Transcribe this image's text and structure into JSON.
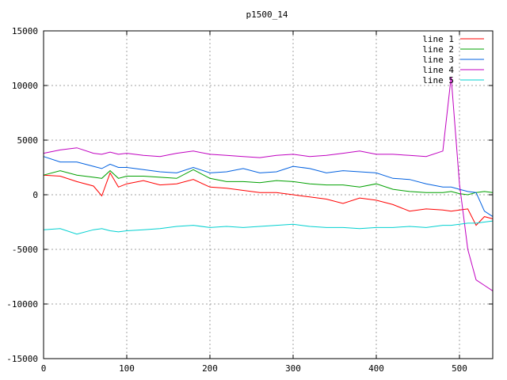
{
  "chart_data": {
    "type": "line",
    "title": "p1500_14",
    "xlabel": "",
    "ylabel": "",
    "xlim": [
      0,
      540
    ],
    "ylim": [
      -15000,
      15000
    ],
    "x_ticks": [
      0,
      100,
      200,
      300,
      400,
      500
    ],
    "y_ticks": [
      -15000,
      -10000,
      -5000,
      0,
      5000,
      10000,
      15000
    ],
    "grid": true,
    "legend_position": "top-right",
    "x": [
      0,
      20,
      40,
      60,
      70,
      80,
      90,
      100,
      120,
      140,
      160,
      180,
      200,
      220,
      240,
      260,
      280,
      300,
      320,
      340,
      360,
      380,
      400,
      420,
      440,
      460,
      480,
      490,
      500,
      510,
      520,
      530,
      540
    ],
    "series": [
      {
        "name": "line 1",
        "color": "#ff0000",
        "values": [
          1800,
          1700,
          1200,
          800,
          -100,
          2000,
          700,
          1000,
          1300,
          900,
          1000,
          1400,
          700,
          600,
          400,
          200,
          200,
          0,
          -200,
          -400,
          -800,
          -300,
          -500,
          -900,
          -1500,
          -1300,
          -1400,
          -1500,
          -1400,
          -1300,
          -2800,
          -2000,
          -2200
        ]
      },
      {
        "name": "line 2",
        "color": "#00a000",
        "values": [
          1800,
          2200,
          1800,
          1600,
          1500,
          2200,
          1500,
          1700,
          1700,
          1600,
          1500,
          2300,
          1500,
          1200,
          1200,
          1100,
          1300,
          1200,
          1000,
          900,
          900,
          700,
          1000,
          500,
          300,
          200,
          200,
          300,
          100,
          0,
          200,
          300,
          200
        ]
      },
      {
        "name": "line 3",
        "color": "#0060e0",
        "values": [
          3500,
          3000,
          3000,
          2600,
          2400,
          2800,
          2500,
          2500,
          2300,
          2100,
          2000,
          2500,
          2000,
          2100,
          2400,
          2000,
          2100,
          2600,
          2400,
          2000,
          2200,
          2100,
          2000,
          1500,
          1400,
          1000,
          700,
          700,
          500,
          300,
          200,
          -1500,
          -2000
        ]
      },
      {
        "name": "line 4",
        "color": "#c000c0",
        "values": [
          3800,
          4100,
          4300,
          3800,
          3700,
          3900,
          3700,
          3800,
          3600,
          3500,
          3800,
          4000,
          3700,
          3600,
          3500,
          3400,
          3600,
          3700,
          3500,
          3600,
          3800,
          4000,
          3700,
          3700,
          3600,
          3500,
          4000,
          10800,
          1000,
          -5000,
          -7800,
          -8300,
          -8800
        ]
      },
      {
        "name": "line 5",
        "color": "#00d0d0",
        "values": [
          -3200,
          -3100,
          -3600,
          -3200,
          -3100,
          -3300,
          -3400,
          -3300,
          -3200,
          -3100,
          -2900,
          -2800,
          -3000,
          -2900,
          -3000,
          -2900,
          -2800,
          -2700,
          -2900,
          -3000,
          -3000,
          -3100,
          -3000,
          -3000,
          -2900,
          -3000,
          -2800,
          -2800,
          -2700,
          -2600,
          -2600,
          -2500,
          -2400
        ]
      }
    ]
  }
}
